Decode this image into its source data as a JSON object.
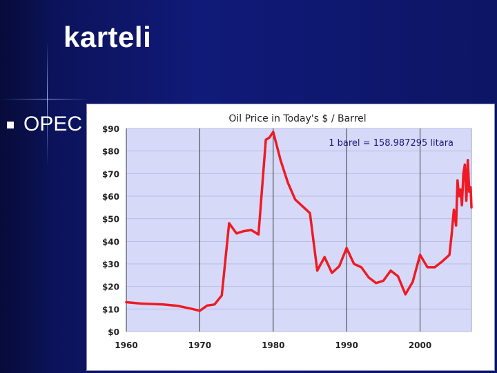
{
  "slide": {
    "title": "karteli",
    "bullet_text": "OPEC"
  },
  "chart_data": {
    "type": "line",
    "title": "Oil Price in Today's $ / Barrel",
    "annotation": "1 barel = 158.987295 litara",
    "xlabel": "",
    "ylabel": "",
    "xlim": [
      1960,
      2007
    ],
    "ylim": [
      0,
      90
    ],
    "x_ticks": [
      1960,
      1970,
      1980,
      1990,
      2000
    ],
    "x_tick_labels": [
      "1960",
      "1970",
      "1980",
      "1990",
      "2000"
    ],
    "y_ticks": [
      0,
      10,
      20,
      30,
      40,
      50,
      60,
      70,
      80,
      90
    ],
    "y_tick_labels": [
      "$0",
      "$10",
      "$20",
      "$30",
      "$40",
      "$50",
      "$60",
      "$70",
      "$80",
      "$90"
    ],
    "grid": "horizontal and vertical",
    "plot_background": "#d6d9f8",
    "line_color": "#ee1b24",
    "series": [
      {
        "x": [
          1960,
          1962,
          1965,
          1967,
          1969,
          1970,
          1971,
          1972,
          1973,
          1974,
          1975,
          1976,
          1977,
          1978,
          1979,
          1979.5,
          1980,
          1981,
          1982,
          1983,
          1984,
          1985,
          1986,
          1987,
          1988,
          1989,
          1990,
          1991,
          1992,
          1993,
          1994,
          1995,
          1996,
          1997,
          1998,
          1999,
          2000,
          2001,
          2002,
          2003,
          2004,
          2004.3,
          2004.6,
          2004.9,
          2005.1,
          2005.3,
          2005.5,
          2005.7,
          2005.9,
          2006.1,
          2006.3,
          2006.5,
          2006.7,
          2006.9,
          2007
        ],
        "y": [
          13,
          12.4,
          12,
          11.4,
          10,
          9.2,
          11.5,
          12,
          16,
          48,
          43.5,
          44.5,
          45,
          43,
          85,
          86,
          88.5,
          76,
          66,
          58.5,
          55.5,
          52.5,
          27,
          33,
          26,
          29,
          37,
          30,
          28.5,
          24,
          21.5,
          22.5,
          27,
          24.5,
          16.5,
          22,
          34,
          28.5,
          28.5,
          31,
          34,
          43,
          54,
          47,
          67,
          60,
          63,
          56,
          70,
          74,
          58,
          76,
          62,
          64,
          55
        ]
      }
    ]
  }
}
